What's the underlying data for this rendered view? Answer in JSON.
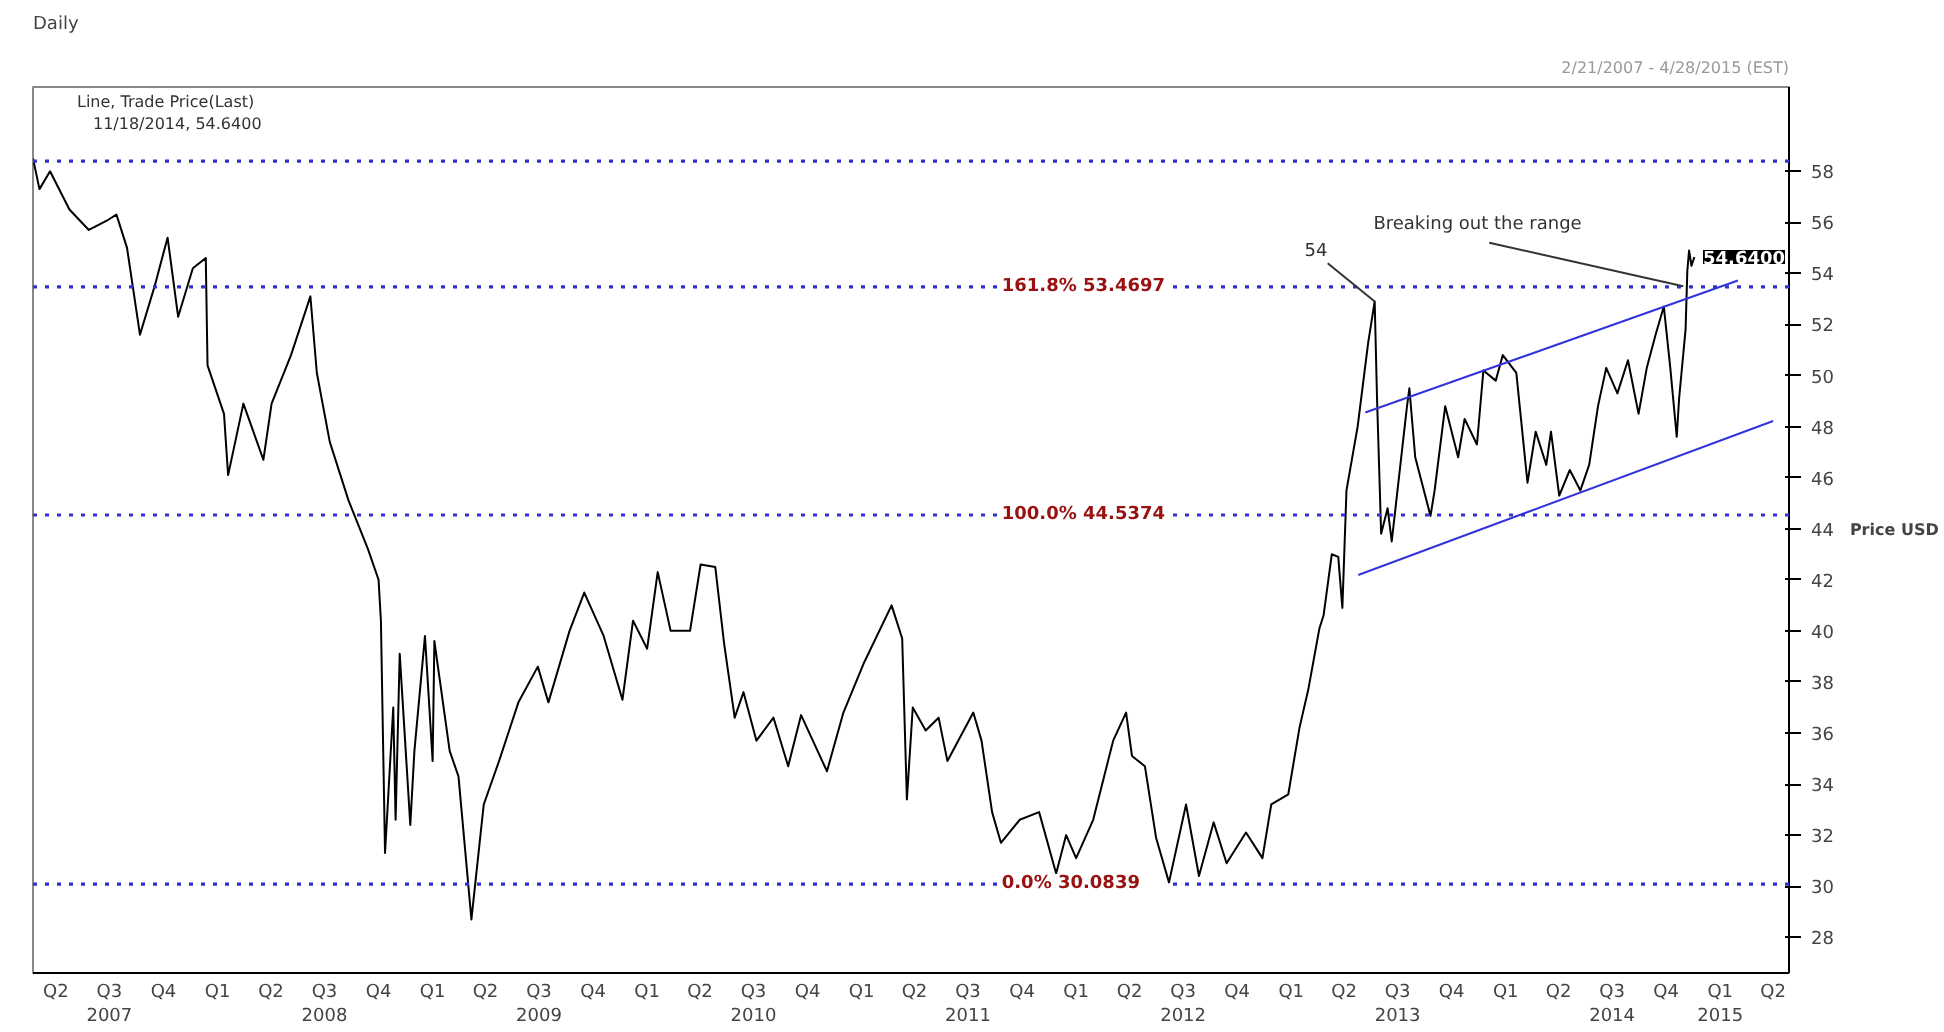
{
  "chart_data": {
    "type": "line",
    "title": "Daily",
    "subtitle": "2/21/2007 - 4/28/2015 (EST)",
    "ylabel": "Price USD",
    "x": [
      "2007-02-21",
      "2007-03-04",
      "2007-03-22",
      "2007-04-24",
      "2007-05-27",
      "2007-06-29",
      "2007-07-13",
      "2007-07-31",
      "2007-08-22",
      "2007-09-16",
      "2007-10-08",
      "2007-10-26",
      "2007-11-20",
      "2007-12-12",
      "2007-12-15",
      "2008-01-12",
      "2008-01-19",
      "2008-02-14",
      "2008-03-19",
      "2008-04-02",
      "2008-05-05",
      "2008-06-07",
      "2008-06-18",
      "2008-07-10",
      "2008-08-11",
      "2008-09-13",
      "2008-10-01",
      "2008-10-05",
      "2008-10-12",
      "2008-10-26",
      "2008-10-30",
      "2008-11-06",
      "2008-11-24",
      "2008-12-01",
      "2008-12-19",
      "2009-01-01",
      "2009-01-04",
      "2009-01-30",
      "2009-02-14",
      "2009-03-08",
      "2009-03-29",
      "2009-04-24",
      "2009-05-27",
      "2009-06-29",
      "2009-07-17",
      "2009-08-22",
      "2009-09-16",
      "2009-10-19",
      "2009-11-20",
      "2009-12-08",
      "2010-01-01",
      "2010-01-19",
      "2010-02-10",
      "2010-03-15",
      "2010-04-02",
      "2010-04-27",
      "2010-05-12",
      "2010-05-30",
      "2010-06-14",
      "2010-07-06",
      "2010-08-04",
      "2010-08-29",
      "2010-09-20",
      "2010-11-03",
      "2010-12-01",
      "2011-01-04",
      "2011-02-21",
      "2011-03-11",
      "2011-03-19",
      "2011-03-29",
      "2011-04-20",
      "2011-05-12",
      "2011-05-27",
      "2011-07-10",
      "2011-07-24",
      "2011-08-11",
      "2011-08-26",
      "2011-09-27",
      "2011-10-30",
      "2011-11-28",
      "2011-12-15",
      "2012-01-01",
      "2012-01-30",
      "2012-03-04",
      "2012-03-26",
      "2012-04-05",
      "2012-04-27",
      "2012-05-16",
      "2012-06-07",
      "2012-07-06",
      "2012-07-28",
      "2012-08-22",
      "2012-09-13",
      "2012-10-16",
      "2012-11-13",
      "2012-11-28",
      "2012-12-27",
      "2013-01-15",
      "2013-01-30",
      "2013-02-18",
      "2013-02-25",
      "2013-03-11",
      "2013-03-22",
      "2013-03-29",
      "2013-04-05",
      "2013-04-24",
      "2013-05-12",
      "2013-05-23",
      "2013-05-27",
      "2013-06-03",
      "2013-06-14",
      "2013-06-21",
      "2013-07-17",
      "2013-07-21",
      "2013-07-31",
      "2013-08-26",
      "2013-09-02",
      "2013-09-20",
      "2013-10-12",
      "2013-10-23",
      "2013-11-13",
      "2013-11-24",
      "2013-12-15",
      "2013-12-27",
      "2014-01-19",
      "2014-02-07",
      "2014-02-21",
      "2014-03-11",
      "2014-03-19",
      "2014-04-02",
      "2014-04-20",
      "2014-05-08",
      "2014-05-23",
      "2014-06-07",
      "2014-06-21",
      "2014-07-10",
      "2014-07-28",
      "2014-08-15",
      "2014-08-29",
      "2014-09-13",
      "2014-09-27",
      "2014-10-08",
      "2014-10-19",
      "2014-10-23",
      "2014-11-03",
      "2014-11-06",
      "2014-11-09",
      "2014-11-13",
      "2014-11-18"
    ],
    "series": [
      {
        "color": "#000000",
        "values": [
          58.5,
          57.3,
          58.0,
          56.5,
          55.7,
          56.1,
          56.3,
          55.0,
          51.6,
          53.5,
          55.4,
          52.3,
          54.2,
          54.6,
          50.4,
          48.5,
          46.1,
          48.9,
          46.7,
          48.9,
          50.8,
          53.1,
          50.1,
          47.4,
          45.1,
          43.2,
          42.0,
          40.4,
          31.3,
          37.0,
          32.6,
          39.1,
          32.4,
          35.3,
          39.8,
          34.9,
          39.6,
          35.3,
          34.3,
          28.7,
          33.2,
          34.9,
          37.2,
          38.6,
          37.2,
          40.0,
          41.5,
          39.8,
          37.3,
          40.4,
          39.3,
          42.3,
          40.0,
          40.0,
          42.6,
          42.5,
          39.5,
          36.6,
          37.6,
          35.7,
          36.6,
          34.7,
          36.7,
          34.5,
          36.8,
          38.7,
          41.0,
          39.7,
          33.4,
          37.0,
          36.1,
          36.6,
          34.9,
          36.8,
          35.7,
          32.9,
          31.7,
          32.6,
          32.9,
          30.5,
          32.0,
          31.1,
          32.6,
          35.7,
          36.8,
          35.1,
          34.7,
          31.9,
          30.15,
          33.2,
          30.4,
          32.5,
          30.9,
          32.1,
          31.1,
          33.2,
          33.6,
          36.2,
          37.7,
          40.1,
          40.6,
          43.0,
          42.9,
          40.9,
          45.5,
          48.0,
          51.3,
          52.9,
          49.1,
          43.8,
          44.8,
          43.5,
          48.8,
          49.5,
          46.8,
          44.5,
          45.5,
          48.8,
          46.8,
          48.3,
          47.3,
          50.2,
          49.8,
          50.8,
          50.1,
          45.8,
          47.8,
          46.5,
          47.8,
          45.3,
          46.3,
          45.5,
          46.5,
          48.8,
          50.3,
          49.3,
          50.6,
          48.5,
          50.3,
          51.6,
          52.7,
          50.3,
          47.6,
          49.1,
          51.8,
          54.1,
          54.9,
          54.3,
          54.64
        ]
      },
      {
        "type": "line",
        "color": "#3333dd",
        "x": [
          "2013-05-07",
          "2015-01-31"
        ],
        "values": [
          48.55,
          53.72
        ]
      },
      {
        "type": "line",
        "color": "#3333dd",
        "x": [
          "2013-04-25",
          "2015-04-01"
        ],
        "values": [
          42.19,
          48.22
        ]
      }
    ],
    "xlim": [
      "2007-02-21",
      "2015-04-28"
    ],
    "ylim": [
      26.6,
      61.3
    ],
    "xticks": [
      {
        "value": "2007-04-01",
        "label": "Q2"
      },
      {
        "value": "2007-07-01",
        "label": "Q3\n2007"
      },
      {
        "value": "2007-10-01",
        "label": "Q4"
      },
      {
        "value": "2008-01-01",
        "label": "Q1"
      },
      {
        "value": "2008-04-01",
        "label": "Q2"
      },
      {
        "value": "2008-07-01",
        "label": "Q3\n2008"
      },
      {
        "value": "2008-10-01",
        "label": "Q4"
      },
      {
        "value": "2009-01-01",
        "label": "Q1"
      },
      {
        "value": "2009-04-01",
        "label": "Q2"
      },
      {
        "value": "2009-07-01",
        "label": "Q3\n2009"
      },
      {
        "value": "2009-10-01",
        "label": "Q4"
      },
      {
        "value": "2010-01-01",
        "label": "Q1"
      },
      {
        "value": "2010-04-01",
        "label": "Q2"
      },
      {
        "value": "2010-07-01",
        "label": "Q3\n2010"
      },
      {
        "value": "2010-10-01",
        "label": "Q4"
      },
      {
        "value": "2011-01-01",
        "label": "Q1"
      },
      {
        "value": "2011-04-01",
        "label": "Q2"
      },
      {
        "value": "2011-07-01",
        "label": "Q3\n2011"
      },
      {
        "value": "2011-10-01",
        "label": "Q4"
      },
      {
        "value": "2012-01-01",
        "label": "Q1"
      },
      {
        "value": "2012-04-01",
        "label": "Q2"
      },
      {
        "value": "2012-07-01",
        "label": "Q3\n2012"
      },
      {
        "value": "2012-10-01",
        "label": "Q4"
      },
      {
        "value": "2013-01-01",
        "label": "Q1"
      },
      {
        "value": "2013-04-01",
        "label": "Q2"
      },
      {
        "value": "2013-07-01",
        "label": "Q3\n2013"
      },
      {
        "value": "2013-10-01",
        "label": "Q4"
      },
      {
        "value": "2014-01-01",
        "label": "Q1"
      },
      {
        "value": "2014-04-01",
        "label": "Q2"
      },
      {
        "value": "2014-07-01",
        "label": "Q3\n2014"
      },
      {
        "value": "2014-10-01",
        "label": "Q4"
      },
      {
        "value": "2015-01-01",
        "label": "Q1\n2015"
      },
      {
        "value": "2015-04-01",
        "label": "Q2"
      }
    ],
    "yticks": [
      28,
      30,
      32,
      34,
      36,
      38,
      40,
      42,
      44,
      46,
      48,
      50,
      52,
      54,
      56,
      58
    ],
    "ref_lines": [
      {
        "axis": "y",
        "value": 58.4,
        "label": null,
        "color": "#3333cc",
        "line_style": "dotted"
      },
      {
        "axis": "y",
        "value": 53.4697,
        "label": "161.8% 53.4697",
        "color": "#3333cc",
        "line_style": "dotted"
      },
      {
        "axis": "y",
        "value": 44.5374,
        "label": "100.0% 44.5374",
        "color": "#3333cc",
        "line_style": "dotted"
      },
      {
        "axis": "y",
        "value": 30.0839,
        "label": "0.0%     30.0839",
        "color": "#3333cc",
        "line_style": "dotted"
      }
    ],
    "annotations": [
      "Line, Trade Price(Last)",
      "11/18/2014, 54.6400",
      {
        "text": "54",
        "x": "2013-05-23",
        "y": 52.9
      },
      {
        "text": "Breaking out the range",
        "x": "2014-10-30",
        "y": 53.5
      },
      "54.6400"
    ],
    "grid": false,
    "marker": "none",
    "line_style": "solid"
  }
}
